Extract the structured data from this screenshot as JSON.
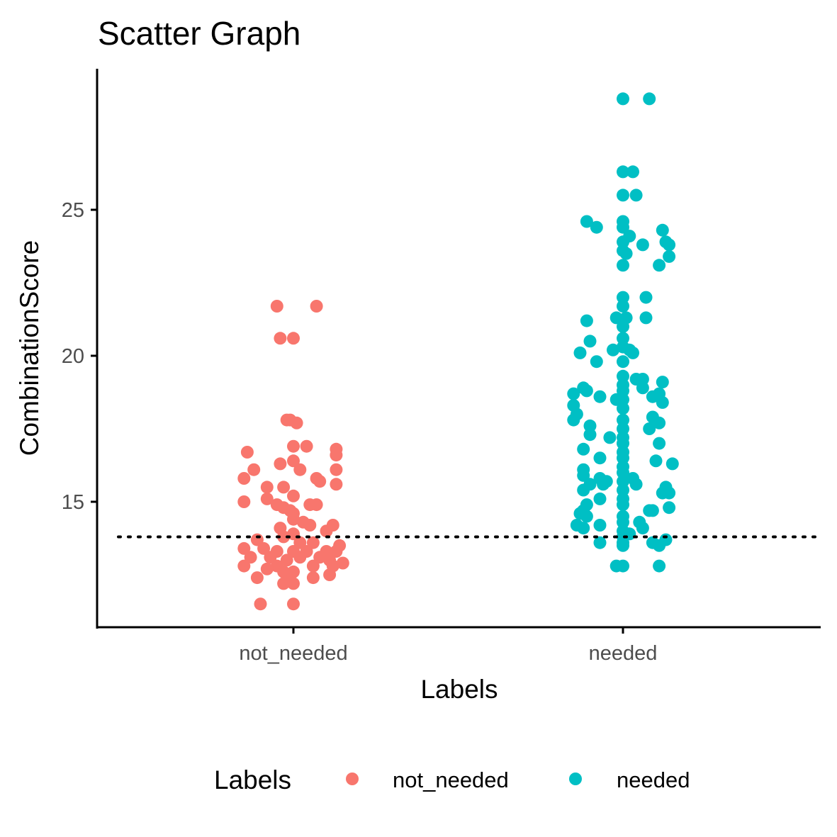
{
  "chart_data": {
    "type": "scatter",
    "title": "Scatter Graph",
    "xlabel": "Labels",
    "ylabel": "CombinationScore",
    "categories": [
      "not_needed",
      "needed"
    ],
    "yticks": [
      15,
      20,
      25
    ],
    "ylim": [
      10.9,
      29.9
    ],
    "reference_line": {
      "y": 13.8,
      "style": "dotted",
      "color": "#000000"
    },
    "grid": false,
    "legend": {
      "title": "Labels",
      "position": "bottom",
      "entries": [
        {
          "label": "not_needed",
          "color": "#F8766D"
        },
        {
          "label": "needed",
          "color": "#00BFC4"
        }
      ]
    },
    "series": [
      {
        "name": "not_needed",
        "color": "#F8766D",
        "points": [
          {
            "x": -0.05,
            "y": 21.7
          },
          {
            "x": 0.07,
            "y": 21.7
          },
          {
            "x": -0.04,
            "y": 20.6
          },
          {
            "x": 0.0,
            "y": 20.6
          },
          {
            "x": -0.01,
            "y": 17.8
          },
          {
            "x": 0.01,
            "y": 17.7
          },
          {
            "x": -0.02,
            "y": 17.8
          },
          {
            "x": 0.0,
            "y": 16.9
          },
          {
            "x": 0.04,
            "y": 16.9
          },
          {
            "x": 0.13,
            "y": 16.8
          },
          {
            "x": 0.13,
            "y": 16.6
          },
          {
            "x": -0.14,
            "y": 16.7
          },
          {
            "x": -0.04,
            "y": 16.3
          },
          {
            "x": 0.0,
            "y": 16.4
          },
          {
            "x": 0.02,
            "y": 16.1
          },
          {
            "x": -0.12,
            "y": 16.1
          },
          {
            "x": 0.13,
            "y": 16.1
          },
          {
            "x": -0.15,
            "y": 15.8
          },
          {
            "x": 0.07,
            "y": 15.8
          },
          {
            "x": 0.08,
            "y": 15.7
          },
          {
            "x": 0.13,
            "y": 15.6
          },
          {
            "x": -0.08,
            "y": 15.5
          },
          {
            "x": -0.03,
            "y": 15.5
          },
          {
            "x": 0.0,
            "y": 15.2
          },
          {
            "x": -0.08,
            "y": 15.1
          },
          {
            "x": -0.15,
            "y": 15.0
          },
          {
            "x": -0.05,
            "y": 14.9
          },
          {
            "x": 0.05,
            "y": 14.9
          },
          {
            "x": 0.07,
            "y": 14.9
          },
          {
            "x": -0.03,
            "y": 14.8
          },
          {
            "x": -0.01,
            "y": 14.7
          },
          {
            "x": 0.0,
            "y": 14.6
          },
          {
            "x": 0.0,
            "y": 14.4
          },
          {
            "x": 0.03,
            "y": 14.3
          },
          {
            "x": 0.12,
            "y": 14.2
          },
          {
            "x": 0.05,
            "y": 14.2
          },
          {
            "x": -0.04,
            "y": 14.1
          },
          {
            "x": 0.1,
            "y": 14.0
          },
          {
            "x": 0.0,
            "y": 13.9
          },
          {
            "x": -0.03,
            "y": 13.8
          },
          {
            "x": -0.11,
            "y": 13.7
          },
          {
            "x": 0.02,
            "y": 13.6
          },
          {
            "x": 0.06,
            "y": 13.6
          },
          {
            "x": 0.14,
            "y": 13.5
          },
          {
            "x": -0.15,
            "y": 13.4
          },
          {
            "x": -0.09,
            "y": 13.4
          },
          {
            "x": -0.05,
            "y": 13.3
          },
          {
            "x": 0.0,
            "y": 13.3
          },
          {
            "x": 0.04,
            "y": 13.3
          },
          {
            "x": 0.1,
            "y": 13.3
          },
          {
            "x": 0.13,
            "y": 13.3
          },
          {
            "x": -0.13,
            "y": 13.1
          },
          {
            "x": -0.07,
            "y": 13.1
          },
          {
            "x": 0.02,
            "y": 13.1
          },
          {
            "x": 0.08,
            "y": 13.1
          },
          {
            "x": 0.11,
            "y": 13.0
          },
          {
            "x": -0.02,
            "y": 13.0
          },
          {
            "x": 0.15,
            "y": 12.9
          },
          {
            "x": -0.15,
            "y": 12.8
          },
          {
            "x": -0.05,
            "y": 12.8
          },
          {
            "x": 0.06,
            "y": 12.8
          },
          {
            "x": 0.12,
            "y": 12.8
          },
          {
            "x": -0.08,
            "y": 12.7
          },
          {
            "x": 0.0,
            "y": 12.6
          },
          {
            "x": -0.03,
            "y": 12.6
          },
          {
            "x": 0.11,
            "y": 12.5
          },
          {
            "x": -0.11,
            "y": 12.4
          },
          {
            "x": 0.06,
            "y": 12.4
          },
          {
            "x": -0.01,
            "y": 12.3
          },
          {
            "x": -0.03,
            "y": 12.2
          },
          {
            "x": 0.0,
            "y": 12.2
          },
          {
            "x": -0.1,
            "y": 11.5
          },
          {
            "x": 0.0,
            "y": 11.5
          }
        ]
      },
      {
        "name": "needed",
        "color": "#00BFC4",
        "points": [
          {
            "x": 0.0,
            "y": 28.8
          },
          {
            "x": 0.08,
            "y": 28.8
          },
          {
            "x": 0.0,
            "y": 26.3
          },
          {
            "x": 0.03,
            "y": 26.3
          },
          {
            "x": 0.0,
            "y": 25.5
          },
          {
            "x": 0.04,
            "y": 25.5
          },
          {
            "x": -0.11,
            "y": 24.6
          },
          {
            "x": 0.0,
            "y": 24.6
          },
          {
            "x": -0.08,
            "y": 24.4
          },
          {
            "x": 0.0,
            "y": 24.4
          },
          {
            "x": 0.12,
            "y": 24.3
          },
          {
            "x": 0.02,
            "y": 24.1
          },
          {
            "x": 0.0,
            "y": 23.9
          },
          {
            "x": 0.06,
            "y": 23.8
          },
          {
            "x": 0.13,
            "y": 23.9
          },
          {
            "x": 0.14,
            "y": 23.8
          },
          {
            "x": 0.0,
            "y": 23.6
          },
          {
            "x": 0.01,
            "y": 23.5
          },
          {
            "x": 0.14,
            "y": 23.4
          },
          {
            "x": 0.11,
            "y": 23.1
          },
          {
            "x": 0.0,
            "y": 23.1
          },
          {
            "x": 0.0,
            "y": 22.0
          },
          {
            "x": 0.07,
            "y": 22.0
          },
          {
            "x": 0.0,
            "y": 21.7
          },
          {
            "x": -0.02,
            "y": 21.3
          },
          {
            "x": 0.01,
            "y": 21.3
          },
          {
            "x": -0.11,
            "y": 21.2
          },
          {
            "x": 0.07,
            "y": 21.3
          },
          {
            "x": 0.0,
            "y": 21.0
          },
          {
            "x": 0.0,
            "y": 20.6
          },
          {
            "x": -0.1,
            "y": 20.5
          },
          {
            "x": 0.0,
            "y": 20.3
          },
          {
            "x": -0.03,
            "y": 20.2
          },
          {
            "x": 0.02,
            "y": 20.2
          },
          {
            "x": -0.13,
            "y": 20.1
          },
          {
            "x": 0.03,
            "y": 20.1
          },
          {
            "x": -0.08,
            "y": 19.8
          },
          {
            "x": 0.0,
            "y": 19.8
          },
          {
            "x": 0.0,
            "y": 19.3
          },
          {
            "x": 0.04,
            "y": 19.2
          },
          {
            "x": 0.06,
            "y": 19.2
          },
          {
            "x": 0.12,
            "y": 19.1
          },
          {
            "x": 0.0,
            "y": 19.0
          },
          {
            "x": 0.06,
            "y": 18.9
          },
          {
            "x": -0.12,
            "y": 18.9
          },
          {
            "x": -0.11,
            "y": 18.8
          },
          {
            "x": 0.0,
            "y": 18.8
          },
          {
            "x": -0.15,
            "y": 18.7
          },
          {
            "x": 0.11,
            "y": 18.7
          },
          {
            "x": -0.07,
            "y": 18.6
          },
          {
            "x": 0.09,
            "y": 18.6
          },
          {
            "x": 0.0,
            "y": 18.5
          },
          {
            "x": -0.02,
            "y": 18.5
          },
          {
            "x": 0.12,
            "y": 18.4
          },
          {
            "x": -0.15,
            "y": 18.3
          },
          {
            "x": 0.0,
            "y": 18.2
          },
          {
            "x": -0.14,
            "y": 18.0
          },
          {
            "x": 0.09,
            "y": 17.9
          },
          {
            "x": -0.15,
            "y": 17.8
          },
          {
            "x": 0.0,
            "y": 17.8
          },
          {
            "x": 0.11,
            "y": 17.7
          },
          {
            "x": -0.1,
            "y": 17.6
          },
          {
            "x": 0.0,
            "y": 17.5
          },
          {
            "x": 0.08,
            "y": 17.5
          },
          {
            "x": -0.1,
            "y": 17.3
          },
          {
            "x": 0.0,
            "y": 17.2
          },
          {
            "x": -0.04,
            "y": 17.2
          },
          {
            "x": 0.0,
            "y": 17.0
          },
          {
            "x": 0.11,
            "y": 17.0
          },
          {
            "x": -0.12,
            "y": 16.8
          },
          {
            "x": 0.0,
            "y": 16.7
          },
          {
            "x": -0.07,
            "y": 16.5
          },
          {
            "x": 0.0,
            "y": 16.5
          },
          {
            "x": 0.1,
            "y": 16.4
          },
          {
            "x": 0.15,
            "y": 16.3
          },
          {
            "x": 0.0,
            "y": 16.2
          },
          {
            "x": -0.12,
            "y": 16.1
          },
          {
            "x": 0.0,
            "y": 16.0
          },
          {
            "x": -0.12,
            "y": 15.9
          },
          {
            "x": -0.07,
            "y": 15.8
          },
          {
            "x": 0.03,
            "y": 15.8
          },
          {
            "x": -0.05,
            "y": 15.7
          },
          {
            "x": 0.0,
            "y": 15.7
          },
          {
            "x": -0.1,
            "y": 15.6
          },
          {
            "x": 0.04,
            "y": 15.6
          },
          {
            "x": -0.06,
            "y": 15.6
          },
          {
            "x": 0.13,
            "y": 15.5
          },
          {
            "x": -0.12,
            "y": 15.4
          },
          {
            "x": 0.0,
            "y": 15.4
          },
          {
            "x": 0.12,
            "y": 15.3
          },
          {
            "x": 0.14,
            "y": 15.3
          },
          {
            "x": -0.07,
            "y": 15.1
          },
          {
            "x": 0.0,
            "y": 15.1
          },
          {
            "x": -0.11,
            "y": 14.9
          },
          {
            "x": 0.0,
            "y": 14.9
          },
          {
            "x": -0.12,
            "y": 14.7
          },
          {
            "x": 0.08,
            "y": 14.7
          },
          {
            "x": 0.09,
            "y": 14.7
          },
          {
            "x": 0.14,
            "y": 14.8
          },
          {
            "x": -0.13,
            "y": 14.6
          },
          {
            "x": -0.11,
            "y": 14.5
          },
          {
            "x": 0.0,
            "y": 14.5
          },
          {
            "x": 0.0,
            "y": 14.3
          },
          {
            "x": 0.05,
            "y": 14.3
          },
          {
            "x": -0.14,
            "y": 14.2
          },
          {
            "x": -0.07,
            "y": 14.2
          },
          {
            "x": -0.12,
            "y": 14.1
          },
          {
            "x": 0.06,
            "y": 14.1
          },
          {
            "x": 0.0,
            "y": 14.0
          },
          {
            "x": 0.02,
            "y": 13.9
          },
          {
            "x": 0.0,
            "y": 13.8
          },
          {
            "x": 0.13,
            "y": 13.7
          },
          {
            "x": -0.07,
            "y": 13.6
          },
          {
            "x": 0.0,
            "y": 13.6
          },
          {
            "x": 0.09,
            "y": 13.6
          },
          {
            "x": 0.11,
            "y": 13.5
          },
          {
            "x": 0.0,
            "y": 13.5
          },
          {
            "x": -0.02,
            "y": 12.8
          },
          {
            "x": 0.0,
            "y": 12.8
          },
          {
            "x": 0.11,
            "y": 12.8
          }
        ]
      }
    ]
  }
}
